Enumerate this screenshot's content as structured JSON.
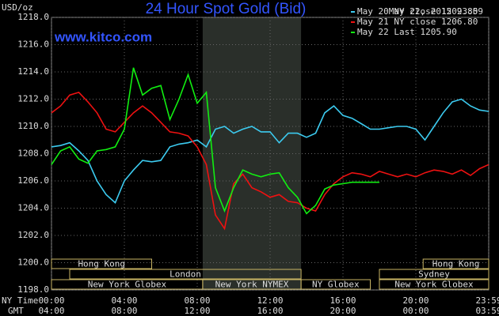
{
  "chart_data": {
    "type": "line",
    "title": "24 Hour Spot Gold (Bid)",
    "unit": "USD/oz",
    "source": "www.kitco.com",
    "timestamp": "May 22, 2015 23:59",
    "x_axis_label": "NY Time",
    "x2_axis_label": "GMT",
    "x": [
      0,
      0.5,
      1,
      1.5,
      2,
      2.5,
      3,
      3.5,
      4,
      4.5,
      5,
      5.5,
      6,
      6.5,
      7,
      7.5,
      8,
      8.5,
      9,
      9.5,
      10,
      10.5,
      11,
      11.5,
      12,
      12.5,
      13,
      13.5,
      14,
      14.5,
      15,
      15.5,
      16,
      16.5,
      17,
      17.5,
      18,
      18.5,
      19,
      19.5,
      20,
      20.5,
      21,
      21.5,
      22,
      22.5,
      23,
      23.5,
      24
    ],
    "series": [
      {
        "name": "May 20 NY close 1209.80",
        "color": "#3ccbf0",
        "values": [
          1208.5,
          1208.6,
          1208.8,
          1208.2,
          1207.5,
          1206,
          1205,
          1204.4,
          1206,
          1206.8,
          1207.5,
          1207.4,
          1207.5,
          1208.5,
          1208.7,
          1208.8,
          1209,
          1208.5,
          1209.8,
          1210,
          1209.5,
          1209.8,
          1210,
          1209.6,
          1209.6,
          1208.8,
          1209.5,
          1209.5,
          1209.2,
          1209.5,
          1211,
          1211.5,
          1210.8,
          1210.6,
          1210.2,
          1209.8,
          1209.8,
          1209.9,
          1210,
          1210,
          1209.8,
          1209,
          1210,
          1211,
          1211.8,
          1212,
          1211.5,
          1211.2,
          1211.1
        ]
      },
      {
        "name": "May 21 NY close 1206.80",
        "color": "#ee1111",
        "values": [
          1211,
          1211.5,
          1212.3,
          1212.5,
          1211.8,
          1211,
          1209.8,
          1209.6,
          1210.3,
          1211,
          1211.5,
          1211,
          1210.3,
          1209.6,
          1209.5,
          1209.3,
          1208.5,
          1207.2,
          1203.5,
          1202.5,
          1205.8,
          1206.5,
          1205.5,
          1205.2,
          1204.8,
          1205,
          1204.5,
          1204.4,
          1204,
          1203.8,
          1205,
          1205.8,
          1206.3,
          1206.6,
          1206.5,
          1206.3,
          1206.7,
          1206.5,
          1206.3,
          1206.5,
          1206.3,
          1206.6,
          1206.8,
          1206.7,
          1206.5,
          1206.8,
          1206.4,
          1206.9,
          1207.2
        ]
      },
      {
        "name": "May 22 Last 1205.90",
        "color": "#11ee11",
        "values": [
          1207.2,
          1208.2,
          1208.5,
          1207.6,
          1207.3,
          1208.2,
          1208.3,
          1208.5,
          1209.8,
          1214.3,
          1212.3,
          1212.8,
          1213,
          1210.5,
          1212,
          1213.8,
          1211.7,
          1212.5,
          1205.5,
          1203.8,
          1205.5,
          1206.8,
          1206.5,
          1206.3,
          1206.5,
          1206.6,
          1205.5,
          1204.8,
          1203.6,
          1204.2,
          1205.4,
          1205.7,
          1205.8,
          1205.9,
          1205.9,
          1205.9,
          1205.9,
          null,
          null,
          null,
          null,
          null,
          null,
          null,
          null,
          null,
          null,
          null,
          null
        ]
      }
    ],
    "xlim": [
      0,
      24
    ],
    "xticks": [
      {
        "value": 0,
        "label": "00:00"
      },
      {
        "value": 4,
        "label": "04:00"
      },
      {
        "value": 8,
        "label": "08:00"
      },
      {
        "value": 12,
        "label": "12:00"
      },
      {
        "value": 16,
        "label": "16:00"
      },
      {
        "value": 20,
        "label": "20:00"
      },
      {
        "value": 24,
        "label": "23:59"
      }
    ],
    "x2ticks": [
      {
        "value": 0,
        "label": "04:00"
      },
      {
        "value": 4,
        "label": "08:00"
      },
      {
        "value": 8,
        "label": "12:00"
      },
      {
        "value": 12,
        "label": "16:00"
      },
      {
        "value": 16,
        "label": "20:00"
      },
      {
        "value": 20,
        "label": "00:00"
      },
      {
        "value": 24,
        "label": "03:59"
      }
    ],
    "ylim": [
      1198,
      1218
    ],
    "yticks": [
      {
        "value": 1198,
        "label": "1198.0"
      },
      {
        "value": 1200,
        "label": "1200.0"
      },
      {
        "value": 1202,
        "label": "1202.0"
      },
      {
        "value": 1204,
        "label": "1204.0"
      },
      {
        "value": 1206,
        "label": "1206.0"
      },
      {
        "value": 1208,
        "label": "1208.0"
      },
      {
        "value": 1210,
        "label": "1210.0"
      },
      {
        "value": 1212,
        "label": "1212.0"
      },
      {
        "value": 1214,
        "label": "1214.0"
      },
      {
        "value": 1216,
        "label": "1216.0"
      },
      {
        "value": 1218,
        "label": "1218.0"
      }
    ],
    "grid": true,
    "sessions": [
      {
        "label": "Hong Kong",
        "row": 0,
        "start": 0,
        "end": 5.5
      },
      {
        "label": "Hong Kong",
        "row": 0,
        "start": 20.4,
        "end": 24
      },
      {
        "label": "London",
        "row": 1,
        "start": 1,
        "end": 13.7
      },
      {
        "label": "Sydney",
        "row": 1,
        "start": 18,
        "end": 24
      },
      {
        "label": "New York Globex",
        "row": 2,
        "start": 0,
        "end": 8.3
      },
      {
        "label": "New York NYMEX",
        "row": 2,
        "start": 8.3,
        "end": 13.7
      },
      {
        "label": "NY Globex",
        "row": 2,
        "start": 13.7,
        "end": 17.5
      },
      {
        "label": "New York Globex",
        "row": 2,
        "start": 18,
        "end": 24
      }
    ]
  }
}
